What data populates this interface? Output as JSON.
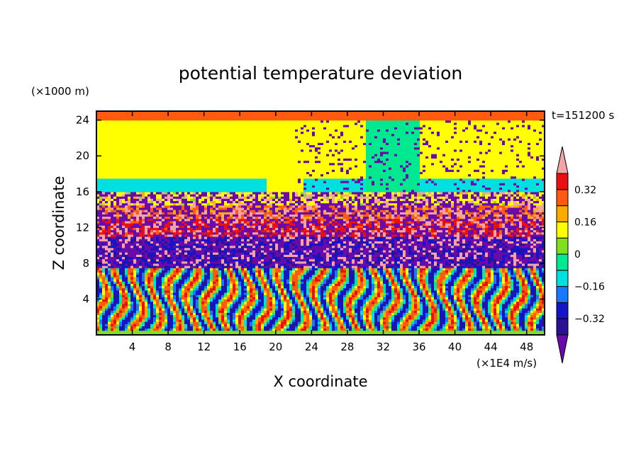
{
  "chart_data": {
    "type": "heatmap",
    "title": "potential temperature deviation",
    "xlabel": "X coordinate",
    "ylabel": "Z coordinate",
    "x_unit": "(×1E4 m/s)",
    "y_unit": "(×1000 m)",
    "time_label": "t=151200 s",
    "xlim": [
      0,
      50
    ],
    "ylim": [
      0,
      25
    ],
    "x_ticks": [
      4,
      8,
      12,
      16,
      20,
      24,
      28,
      32,
      36,
      40,
      44,
      48
    ],
    "y_ticks": [
      4,
      8,
      12,
      16,
      20,
      24
    ],
    "colorbar": {
      "levels": [
        -0.4,
        -0.32,
        -0.24,
        -0.16,
        -0.08,
        0,
        0.08,
        0.16,
        0.24,
        0.32,
        0.4
      ],
      "labels": [
        "0.32",
        "0.16",
        "0",
        "−0.16",
        "−0.32"
      ],
      "label_values": [
        0.32,
        0.16,
        0,
        -0.16,
        -0.32
      ],
      "colors": [
        "#6a0aa8",
        "#2a1296",
        "#1414c8",
        "#1a78ff",
        "#00e0e0",
        "#00e890",
        "#80e020",
        "#ffff00",
        "#ffaa00",
        "#ff5a10",
        "#e81010",
        "#f4a4a4"
      ],
      "extend": "both"
    },
    "bands": [
      {
        "z": [
          0,
          0.5
        ],
        "value": 0.05
      },
      {
        "z": [
          0.5,
          7.5
        ],
        "value": 0.0,
        "pattern": "oscillating"
      },
      {
        "z": [
          7.5,
          13
        ],
        "value": -0.3,
        "pattern": "mixed"
      },
      {
        "z": [
          11,
          13
        ],
        "value": 0.35
      },
      {
        "z": [
          13,
          14.5
        ],
        "value": 0.26
      },
      {
        "z": [
          14.5,
          16
        ],
        "value": 0.12
      },
      {
        "z": [
          16,
          17.5
        ],
        "value": -0.1
      },
      {
        "z": [
          17.5,
          24
        ],
        "value": 0.1
      },
      {
        "z": [
          24,
          25
        ],
        "value": 0.3
      }
    ]
  }
}
